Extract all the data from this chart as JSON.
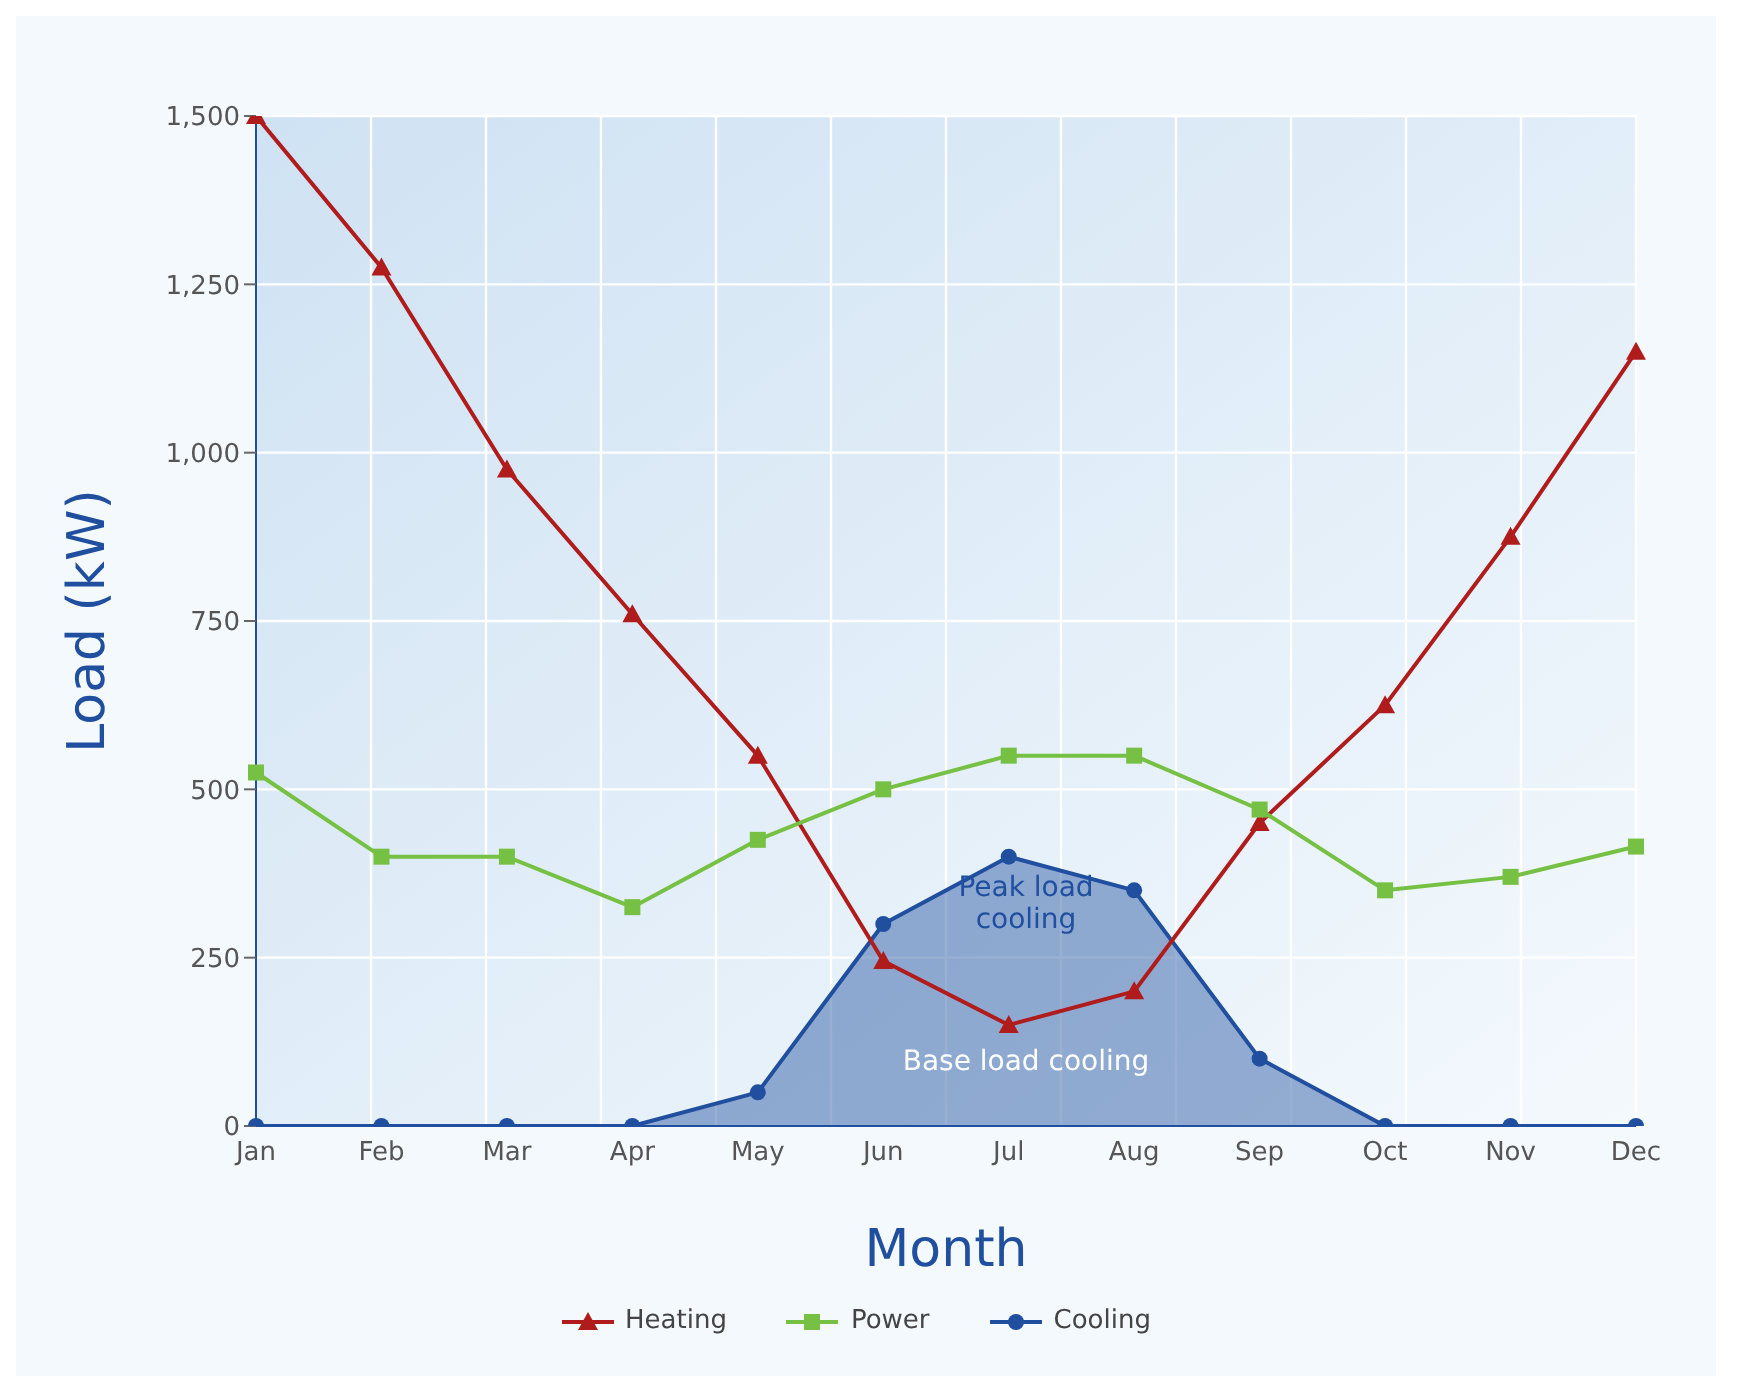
{
  "chart_data": {
    "type": "line",
    "xlabel": "Month",
    "ylabel": "Load (kW)",
    "categories": [
      "Jan",
      "Feb",
      "Mar",
      "Apr",
      "May",
      "Jun",
      "Jul",
      "Aug",
      "Sep",
      "Oct",
      "Nov",
      "Dec"
    ],
    "series": [
      {
        "name": "Heating",
        "color": "#b01c1c",
        "marker": "triangle",
        "values": [
          1500,
          1275,
          975,
          760,
          550,
          245,
          150,
          200,
          450,
          625,
          875,
          1150
        ]
      },
      {
        "name": "Power",
        "color": "#76c043",
        "marker": "square",
        "values": [
          525,
          400,
          400,
          325,
          425,
          500,
          550,
          550,
          470,
          350,
          370,
          415
        ]
      },
      {
        "name": "Cooling",
        "type": "area",
        "color": "#1f4f9e",
        "marker": "circle",
        "values": [
          0,
          0,
          0,
          0,
          50,
          300,
          400,
          350,
          100,
          0,
          0,
          0
        ]
      }
    ],
    "ylim": [
      0,
      1500
    ],
    "yticks": [
      0,
      250,
      500,
      750,
      {
        "value": 1000,
        "label": "1,000"
      },
      {
        "value": 1250,
        "label": "1,250"
      },
      {
        "value": 1500,
        "label": "1,500"
      }
    ],
    "annotations": [
      "Peak load cooling",
      "Base load cooling"
    ],
    "grid": true,
    "legend": "bottom",
    "line_style": "solid"
  }
}
